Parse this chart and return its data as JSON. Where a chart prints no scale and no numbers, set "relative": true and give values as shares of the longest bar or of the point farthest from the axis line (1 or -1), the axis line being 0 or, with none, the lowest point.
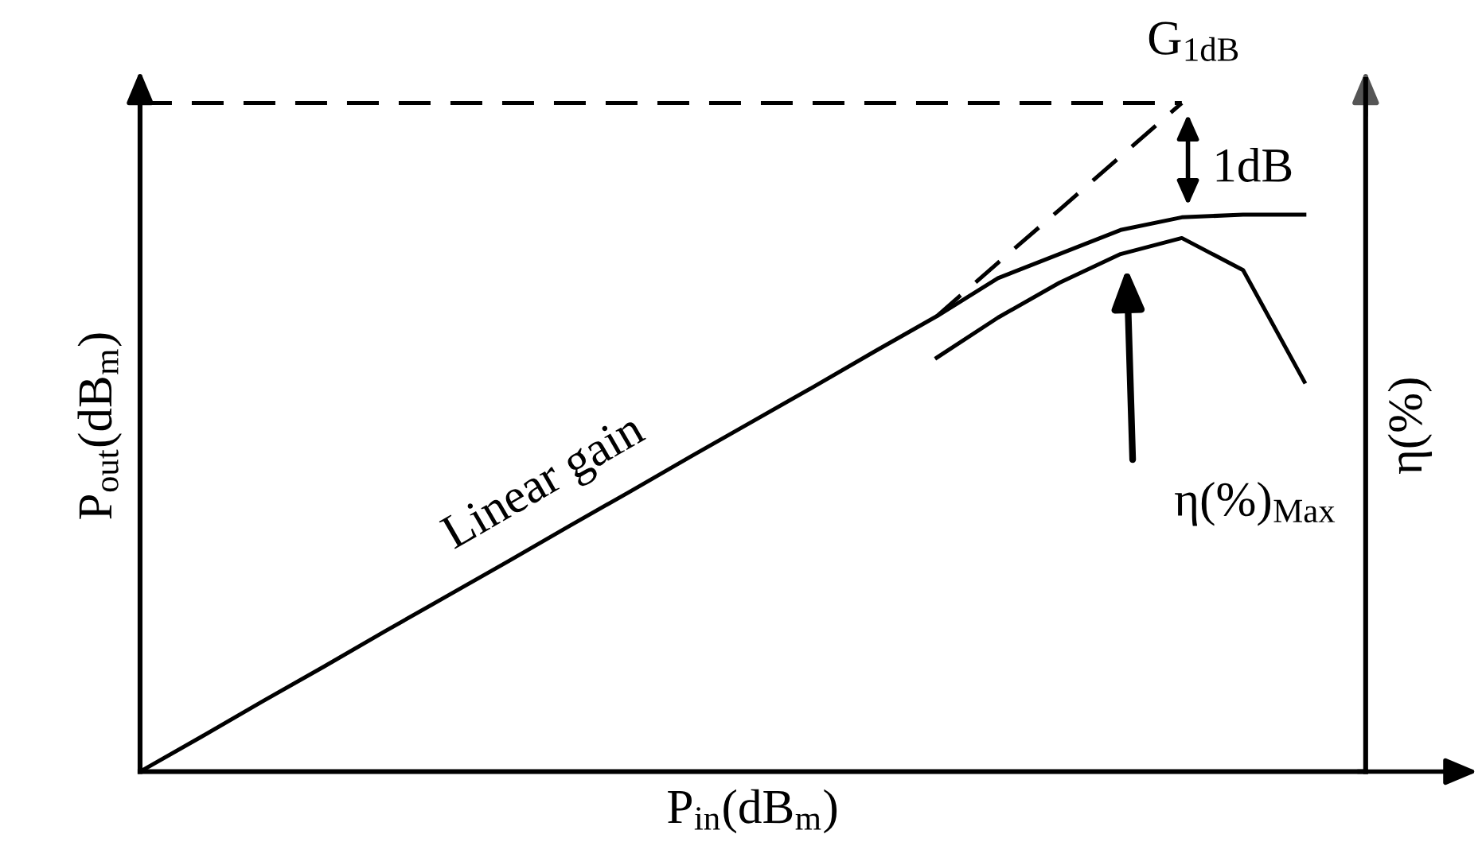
{
  "chart_data": {
    "type": "line",
    "relative": true,
    "xlabel": "P$_{in}$(dB$_{m}$)",
    "ylabel": "P$_{out}$(dB$_{m}$)",
    "y2label": "η(%)",
    "categories": [
      null,
      null,
      null,
      null,
      null,
      null,
      null,
      null,
      null,
      null,
      null,
      null,
      null,
      null,
      null,
      null,
      null,
      null,
      null,
      null,
      null
    ],
    "series": [
      {
        "color": "#000000",
        "line_style": "solid",
        "values": [
          0,
          0.052,
          0.105,
          0.157,
          0.21,
          0.262,
          0.314,
          0.367,
          0.419,
          0.472,
          0.524,
          0.576,
          0.629,
          0.681,
          0.738,
          0.774,
          0.81,
          0.829,
          0.833,
          0.833,
          null
        ]
      },
      {
        "color": "#000000",
        "line_style": "dashed",
        "values": [
          null,
          null,
          null,
          null,
          null,
          null,
          null,
          null,
          null,
          null,
          null,
          null,
          null,
          0.681,
          0.761,
          0.84,
          0.92,
          1.0,
          null,
          null,
          null
        ]
      },
      {
        "color": "#000000",
        "line_style": "dashed",
        "values": [
          1.0,
          1.0,
          1.0,
          1.0,
          1.0,
          1.0,
          1.0,
          1.0,
          1.0,
          1.0,
          1.0,
          1.0,
          1.0,
          1.0,
          1.0,
          1.0,
          1.0,
          1.0,
          null,
          null,
          null
        ]
      },
      {
        "color": "#000000",
        "line_style": "solid",
        "values": [
          null,
          null,
          null,
          null,
          null,
          null,
          null,
          null,
          null,
          null,
          null,
          null,
          null,
          0.619,
          0.679,
          0.731,
          0.774,
          0.798,
          0.75,
          0.583,
          null
        ]
      }
    ],
    "annotations": [
      "Linear gain",
      "G$_{1dB}$",
      "1dB",
      "η(%)$_{Max}$"
    ],
    "legend": false,
    "marker": "none"
  }
}
